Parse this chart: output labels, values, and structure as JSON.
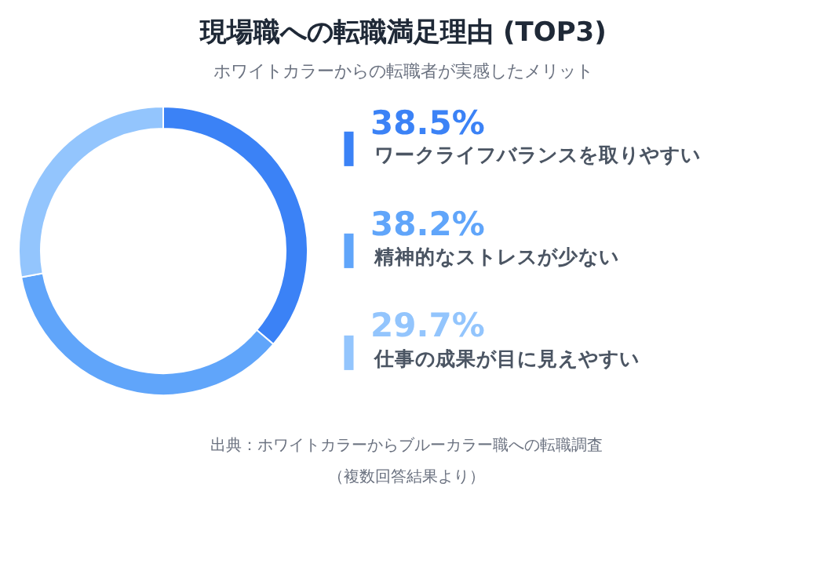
{
  "chart_data": {
    "type": "donut",
    "title": "現場職への転職満足理由 (TOP3)",
    "subtitle": "ホワイトカラーからの転職者が実感したメリット",
    "categories": [
      "ワークライフバランスを取りやすい",
      "精神的なストレスが少ない",
      "仕事の成果が目に見えやすい"
    ],
    "values": [
      38.5,
      38.2,
      29.7
    ],
    "value_labels": [
      "38.5%",
      "38.2%",
      "29.7%"
    ],
    "colors": [
      "#3b82f6",
      "#60a5fa",
      "#93c5fd"
    ],
    "legend": "right",
    "annotations": [
      "出典：ホワイトカラーからブルーカラー職への転職調査",
      "（複数回答結果より）"
    ]
  }
}
